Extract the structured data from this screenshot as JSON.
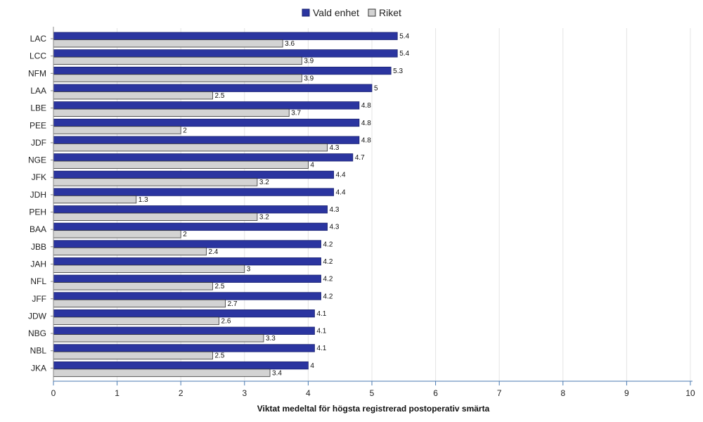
{
  "chart_data": {
    "type": "bar",
    "orientation": "horizontal",
    "categories": [
      "LAC",
      "LCC",
      "NFM",
      "LAA",
      "LBE",
      "PEE",
      "JDF",
      "NGE",
      "JFK",
      "JDH",
      "PEH",
      "BAA",
      "JBB",
      "JAH",
      "NFL",
      "JFF",
      "JDW",
      "NBG",
      "NBL",
      "JKA"
    ],
    "series": [
      {
        "name": "Vald enhet",
        "color": "#2b35a0",
        "values": [
          5.4,
          5.4,
          5.3,
          5,
          4.8,
          4.8,
          4.8,
          4.7,
          4.4,
          4.4,
          4.3,
          4.3,
          4.2,
          4.2,
          4.2,
          4.2,
          4.1,
          4.1,
          4.1,
          4
        ]
      },
      {
        "name": "Riket",
        "color": "#d3d3d3",
        "values": [
          3.6,
          3.9,
          3.9,
          2.5,
          3.7,
          2,
          4.3,
          4,
          3.2,
          1.3,
          3.2,
          2,
          2.4,
          3,
          2.5,
          2.7,
          2.6,
          3.3,
          2.5,
          3.4
        ]
      }
    ],
    "xlabel": "Viktat medeltal för högsta registrerad postoperativ smärta",
    "xlim": [
      0,
      10
    ],
    "xticks": [
      0,
      1,
      2,
      3,
      4,
      5,
      6,
      7,
      8,
      9,
      10
    ],
    "grid": "vertical",
    "legend": "top-center"
  }
}
